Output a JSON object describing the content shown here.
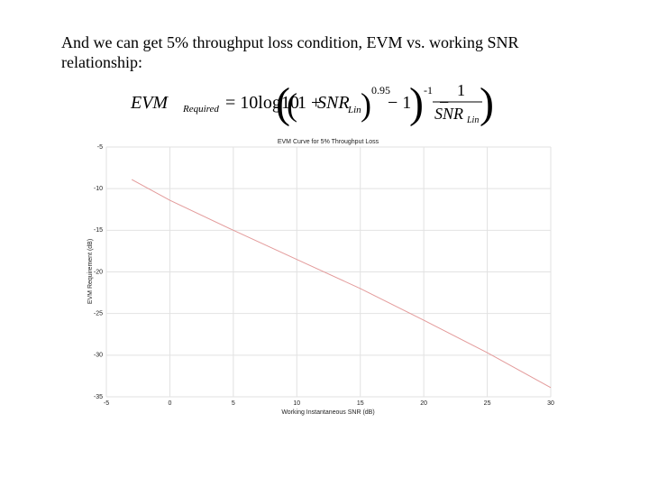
{
  "text": {
    "paragraph": "And we can get 5% throughput loss condition, EVM vs. working SNR relationship:"
  },
  "equation": {
    "lhs": "EVM",
    "lhs_sub": "Required",
    "eq": "= 10log10",
    "one_plus": "1 + ",
    "snr": "SNR",
    "snr_sub": "Lin",
    "exp": "0.95",
    "minus_one": "− 1",
    "inv": "-1",
    "minus": "−",
    "num": "1",
    "den": "SNR",
    "den_sub": "Lin"
  },
  "chart_data": {
    "type": "line",
    "title": "EVM Curve for 5% Throughput Loss",
    "x_label": "Working Instantaneous SNR (dB)",
    "y_label": "EVM Requirement (dB)",
    "x": [
      -3,
      0,
      5,
      10,
      15,
      20,
      25,
      30
    ],
    "values": [
      -8.9,
      -11.4,
      -15.0,
      -18.5,
      -22.0,
      -25.8,
      -29.7,
      -33.9
    ],
    "color": "#e39a9a",
    "xlim": [
      -5,
      30
    ],
    "xticks": [
      -5,
      0,
      5,
      10,
      15,
      20,
      25,
      30
    ],
    "ylim": [
      -35,
      -5
    ],
    "yticks": [
      -5,
      -10,
      -15,
      -20,
      -25,
      -30,
      -35
    ],
    "grid": true
  }
}
